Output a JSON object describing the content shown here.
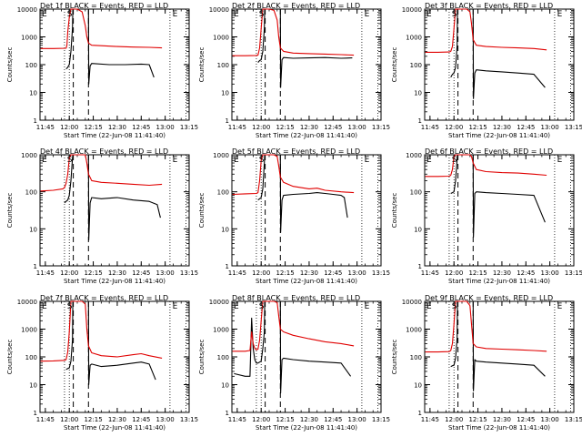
{
  "figure": {
    "ylabel": "Counts/sec",
    "xlabel_prefix": "Start Time",
    "start_time": "22-Jun-08 11:41:40",
    "series_colors": {
      "events": "#000000",
      "lld": "#e00000"
    }
  },
  "chart_data": [
    {
      "type": "line",
      "title": "Det 1f BLACK = Events, RED = LLD",
      "yscale": "log",
      "ylim": [
        1,
        10000
      ],
      "yticks": [
        "1",
        "10",
        "100",
        "1000",
        "10000"
      ],
      "xticks": [
        "11:45",
        "12:00",
        "12:15",
        "12:30",
        "12:45",
        "13:00",
        "13:15"
      ],
      "xlim_min": [
        41.67,
        135
      ],
      "markers": {
        "E1": 41.7,
        "S": 58,
        "E2": 124
      },
      "dotted_x": [
        57,
        60,
        123,
        133
      ],
      "dashed_x": [
        62.5,
        72
      ],
      "series": [
        {
          "name": "Events",
          "x": [
            58,
            59,
            59.5,
            60,
            61,
            62,
            62.2,
            65,
            72,
            72.2,
            73,
            74,
            85,
            95,
            105,
            110,
            113
          ],
          "y": [
            70,
            80,
            90,
            100,
            300,
            2000,
            10000,
            10000,
            10000,
            20,
            90,
            110,
            100,
            100,
            105,
            100,
            35
          ]
        },
        {
          "name": "LLD",
          "x": [
            42,
            50,
            58,
            58.5,
            59,
            60,
            61,
            61.5,
            62,
            65,
            68,
            70,
            71,
            72,
            74,
            80,
            90,
            100,
            110,
            118
          ],
          "y": [
            380,
            380,
            390,
            500,
            1500,
            5000,
            10000,
            10000,
            10000,
            10000,
            8000,
            2500,
            1000,
            600,
            500,
            480,
            450,
            430,
            420,
            400
          ]
        }
      ]
    },
    {
      "type": "line",
      "title": "Det 2f BLACK = Events, RED = LLD",
      "yscale": "log",
      "ylim": [
        1,
        10000
      ],
      "yticks": [
        "1",
        "10",
        "100",
        "1000",
        "10000"
      ],
      "xticks": [
        "11:45",
        "12:00",
        "12:15",
        "12:30",
        "12:45",
        "13:00",
        "13:15"
      ],
      "xlim_min": [
        41.67,
        135
      ],
      "markers": {
        "E1": 41.7,
        "S": 58,
        "E2": 124
      },
      "dotted_x": [
        57,
        60,
        123,
        133
      ],
      "dashed_x": [
        62.5,
        72
      ],
      "series": [
        {
          "name": "Events",
          "x": [
            58,
            59,
            60,
            61,
            62,
            62.2,
            65,
            72,
            72.2,
            73,
            74,
            80,
            90,
            100,
            110,
            117
          ],
          "y": [
            120,
            140,
            150,
            300,
            2000,
            10000,
            10000,
            10000,
            15,
            150,
            180,
            170,
            175,
            180,
            170,
            175
          ]
        },
        {
          "name": "LLD",
          "x": [
            42,
            50,
            57,
            58,
            59,
            60,
            61,
            62,
            65,
            68,
            70,
            71,
            72,
            74,
            80,
            90,
            100,
            110,
            118
          ],
          "y": [
            210,
            210,
            215,
            220,
            400,
            2000,
            10000,
            10000,
            10000,
            9000,
            4000,
            1000,
            400,
            300,
            260,
            250,
            240,
            230,
            220
          ]
        }
      ]
    },
    {
      "type": "line",
      "title": "Det 3f BLACK = Events, RED = LLD",
      "yscale": "log",
      "ylim": [
        1,
        10000
      ],
      "yticks": [
        "1",
        "10",
        "100",
        "1000",
        "10000"
      ],
      "xticks": [
        "11:45",
        "12:00",
        "12:15",
        "12:30",
        "12:45",
        "13:00",
        "13:15"
      ],
      "xlim_min": [
        41.67,
        135
      ],
      "markers": {
        "E1": 41.7,
        "S": 58,
        "E2": 124
      },
      "dotted_x": [
        57,
        60,
        123,
        133
      ],
      "dashed_x": [
        62.5,
        72
      ],
      "series": [
        {
          "name": "Events",
          "x": [
            58,
            59,
            60,
            61,
            62,
            62.2,
            65,
            72,
            72.2,
            73,
            74,
            80,
            90,
            100,
            110,
            117
          ],
          "y": [
            35,
            45,
            50,
            80,
            500,
            10000,
            10000,
            10000,
            6,
            50,
            65,
            60,
            55,
            50,
            45,
            15
          ]
        },
        {
          "name": "LLD",
          "x": [
            42,
            50,
            57,
            58,
            59,
            60,
            61,
            62,
            65,
            68,
            70,
            71,
            72,
            74,
            80,
            90,
            100,
            110,
            118
          ],
          "y": [
            280,
            280,
            285,
            300,
            450,
            2000,
            10000,
            10000,
            10000,
            10000,
            8000,
            3000,
            800,
            500,
            450,
            420,
            400,
            380,
            340
          ]
        }
      ]
    },
    {
      "type": "line",
      "title": "Det 4f BLACK = Events, RED = LLD",
      "yscale": "log",
      "ylim": [
        1,
        1000
      ],
      "yticks": [
        "1",
        "10",
        "100",
        "1000"
      ],
      "xticks": [
        "11:45",
        "12:00",
        "12:15",
        "12:30",
        "12:45",
        "13:00",
        "13:15"
      ],
      "xlim_min": [
        41.67,
        135
      ],
      "markers": {
        "E1": 41.7,
        "S": 58,
        "E2": 124
      },
      "dotted_x": [
        57,
        60,
        123,
        133
      ],
      "dashed_x": [
        62.5,
        72
      ],
      "series": [
        {
          "name": "Events",
          "x": [
            57,
            58,
            59,
            60,
            61,
            62,
            62.2,
            65,
            72,
            72.2,
            73,
            74,
            80,
            90,
            100,
            110,
            115,
            117
          ],
          "y": [
            50,
            55,
            60,
            80,
            200,
            800,
            1000,
            1000,
            1000,
            5,
            50,
            70,
            65,
            70,
            60,
            55,
            45,
            20
          ]
        },
        {
          "name": "LLD",
          "x": [
            42,
            50,
            56,
            57,
            58,
            59,
            60,
            61,
            62,
            65,
            68,
            70,
            71,
            72,
            74,
            80,
            90,
            100,
            110,
            118
          ],
          "y": [
            105,
            110,
            120,
            130,
            170,
            300,
            800,
            1000,
            1000,
            1000,
            1000,
            1000,
            600,
            300,
            200,
            180,
            170,
            160,
            150,
            160
          ]
        }
      ]
    },
    {
      "type": "line",
      "title": "Det 5f BLACK = Events, RED = LLD",
      "yscale": "log",
      "ylim": [
        1,
        1000
      ],
      "yticks": [
        "1",
        "10",
        "100",
        "1000"
      ],
      "xticks": [
        "11:45",
        "12:00",
        "12:15",
        "12:30",
        "12:45",
        "13:00",
        "13:15"
      ],
      "xlim_min": [
        41.67,
        135
      ],
      "markers": {
        "E1": 41.7,
        "S": 58,
        "E2": 124
      },
      "dotted_x": [
        57,
        60,
        123,
        133
      ],
      "dashed_x": [
        62.5,
        72
      ],
      "series": [
        {
          "name": "Events",
          "x": [
            58,
            59,
            60,
            61,
            62,
            62.2,
            65,
            72,
            72.2,
            73,
            74,
            80,
            90,
            95,
            100,
            105,
            110,
            112,
            114
          ],
          "y": [
            60,
            65,
            70,
            120,
            600,
            1000,
            1000,
            1000,
            8,
            60,
            80,
            85,
            90,
            95,
            90,
            85,
            80,
            70,
            20
          ]
        },
        {
          "name": "LLD",
          "x": [
            42,
            50,
            57,
            58,
            59,
            60,
            61,
            62,
            65,
            68,
            70,
            71,
            72,
            74,
            80,
            90,
            95,
            100,
            110,
            118
          ],
          "y": [
            85,
            88,
            90,
            95,
            200,
            700,
            1000,
            1000,
            1000,
            1000,
            900,
            500,
            250,
            180,
            140,
            120,
            125,
            110,
            100,
            95
          ]
        }
      ]
    },
    {
      "type": "line",
      "title": "Det 6f BLACK = Events, RED = LLD",
      "yscale": "log",
      "ylim": [
        1,
        1000
      ],
      "yticks": [
        "1",
        "10",
        "100",
        "1000"
      ],
      "xticks": [
        "11:45",
        "12:00",
        "12:15",
        "12:30",
        "12:45",
        "13:00",
        "13:15"
      ],
      "xlim_min": [
        41.67,
        135
      ],
      "markers": {
        "E1": 41.7,
        "S": 58,
        "E2": 124
      },
      "dotted_x": [
        57,
        60,
        123,
        133
      ],
      "dashed_x": [
        62.5,
        72
      ],
      "series": [
        {
          "name": "Events",
          "x": [
            58,
            59,
            60,
            61,
            62,
            62.2,
            65,
            72,
            72.2,
            73,
            74,
            80,
            90,
            100,
            110,
            117
          ],
          "y": [
            90,
            95,
            100,
            200,
            800,
            1000,
            1000,
            1000,
            6,
            90,
            100,
            95,
            90,
            85,
            80,
            15
          ]
        },
        {
          "name": "LLD",
          "x": [
            42,
            50,
            57,
            58,
            59,
            60,
            61,
            62,
            65,
            68,
            70,
            71,
            72,
            74,
            80,
            90,
            100,
            110,
            118
          ],
          "y": [
            260,
            260,
            265,
            280,
            400,
            900,
            1000,
            1000,
            1000,
            1000,
            1000,
            900,
            600,
            400,
            350,
            330,
            320,
            300,
            280
          ]
        }
      ]
    },
    {
      "type": "line",
      "title": "Det 7f BLACK = Events, RED = LLD",
      "yscale": "log",
      "ylim": [
        1,
        10000
      ],
      "yticks": [
        "1",
        "10",
        "100",
        "1000",
        "10000"
      ],
      "xticks": [
        "11:45",
        "12:00",
        "12:15",
        "12:30",
        "12:45",
        "13:00",
        "13:15"
      ],
      "xlim_min": [
        41.67,
        135
      ],
      "markers": {
        "E1": 41.7,
        "S": 58,
        "E2": 124
      },
      "dotted_x": [
        57,
        60,
        123,
        133
      ],
      "dashed_x": [
        62.5,
        72
      ],
      "series": [
        {
          "name": "Events",
          "x": [
            58,
            59,
            60,
            61,
            62,
            62.2,
            65,
            72,
            72.2,
            73,
            74,
            80,
            90,
            100,
            105,
            110,
            114
          ],
          "y": [
            35,
            38,
            40,
            70,
            400,
            10000,
            10000,
            10000,
            10,
            50,
            55,
            45,
            50,
            60,
            65,
            55,
            15
          ]
        },
        {
          "name": "LLD",
          "x": [
            42,
            50,
            57,
            58,
            59,
            60,
            61,
            62,
            65,
            68,
            70,
            71,
            72,
            74,
            80,
            90,
            100,
            105,
            110,
            118
          ],
          "y": [
            70,
            72,
            75,
            80,
            150,
            800,
            10000,
            10000,
            10000,
            10000,
            8000,
            1000,
            250,
            140,
            110,
            100,
            120,
            130,
            110,
            90
          ]
        }
      ]
    },
    {
      "type": "line",
      "title": "Det 8f BLACK = Events, RED = LLD",
      "yscale": "log",
      "ylim": [
        1,
        10000
      ],
      "yticks": [
        "1",
        "10",
        "100",
        "1000",
        "10000"
      ],
      "xticks": [
        "11:45",
        "12:00",
        "12:15",
        "12:30",
        "12:45",
        "13:00",
        "13:15"
      ],
      "xlim_min": [
        41.67,
        135
      ],
      "markers": {
        "E1": 41.7,
        "S": 58,
        "E2": 124
      },
      "dotted_x": [
        57,
        60,
        123,
        133
      ],
      "dashed_x": [
        62.5,
        72
      ],
      "series": [
        {
          "name": "Events",
          "x": [
            43,
            50,
            53,
            54,
            55,
            56,
            57,
            58,
            59,
            60,
            61,
            62,
            62.2,
            65,
            72,
            72.2,
            73,
            74,
            80,
            90,
            100,
            110,
            116
          ],
          "y": [
            25,
            20,
            20,
            2500,
            200,
            80,
            60,
            60,
            65,
            70,
            200,
            800,
            10000,
            10000,
            10000,
            5,
            80,
            90,
            80,
            70,
            65,
            60,
            20
          ]
        },
        {
          "name": "LLD",
          "x": [
            42,
            50,
            53,
            54,
            55,
            56,
            57,
            58,
            59,
            60,
            61,
            62,
            65,
            68,
            70,
            71,
            72,
            74,
            80,
            90,
            100,
            110,
            118
          ],
          "y": [
            160,
            160,
            170,
            800,
            300,
            200,
            180,
            190,
            400,
            2000,
            10000,
            10000,
            10000,
            10000,
            9000,
            3000,
            1000,
            800,
            600,
            450,
            350,
            300,
            250
          ]
        }
      ]
    },
    {
      "type": "line",
      "title": "Det 9f BLACK = Events, RED = LLD",
      "yscale": "log",
      "ylim": [
        1,
        10000
      ],
      "yticks": [
        "1",
        "10",
        "100",
        "1000",
        "10000"
      ],
      "xticks": [
        "11:45",
        "12:00",
        "12:15",
        "12:30",
        "12:45",
        "13:00",
        "13:15"
      ],
      "xlim_min": [
        41.67,
        135
      ],
      "markers": {
        "E1": 41.7,
        "S": 58,
        "E2": 124
      },
      "dotted_x": [
        57,
        60,
        123,
        133
      ],
      "dashed_x": [
        62.5,
        72
      ],
      "series": [
        {
          "name": "Events",
          "x": [
            58,
            59,
            60,
            61,
            62,
            62.2,
            65,
            72,
            72.2,
            73,
            74,
            80,
            90,
            100,
            110,
            117
          ],
          "y": [
            45,
            48,
            50,
            90,
            500,
            10000,
            10000,
            10000,
            6,
            80,
            70,
            65,
            60,
            55,
            50,
            20
          ]
        },
        {
          "name": "LLD",
          "x": [
            42,
            50,
            57,
            58,
            59,
            60,
            61,
            62,
            65,
            68,
            70,
            71,
            72,
            74,
            80,
            90,
            100,
            110,
            118
          ],
          "y": [
            150,
            150,
            155,
            170,
            300,
            1500,
            10000,
            10000,
            10000,
            10000,
            7000,
            1500,
            300,
            230,
            200,
            190,
            180,
            170,
            160
          ]
        }
      ]
    }
  ]
}
